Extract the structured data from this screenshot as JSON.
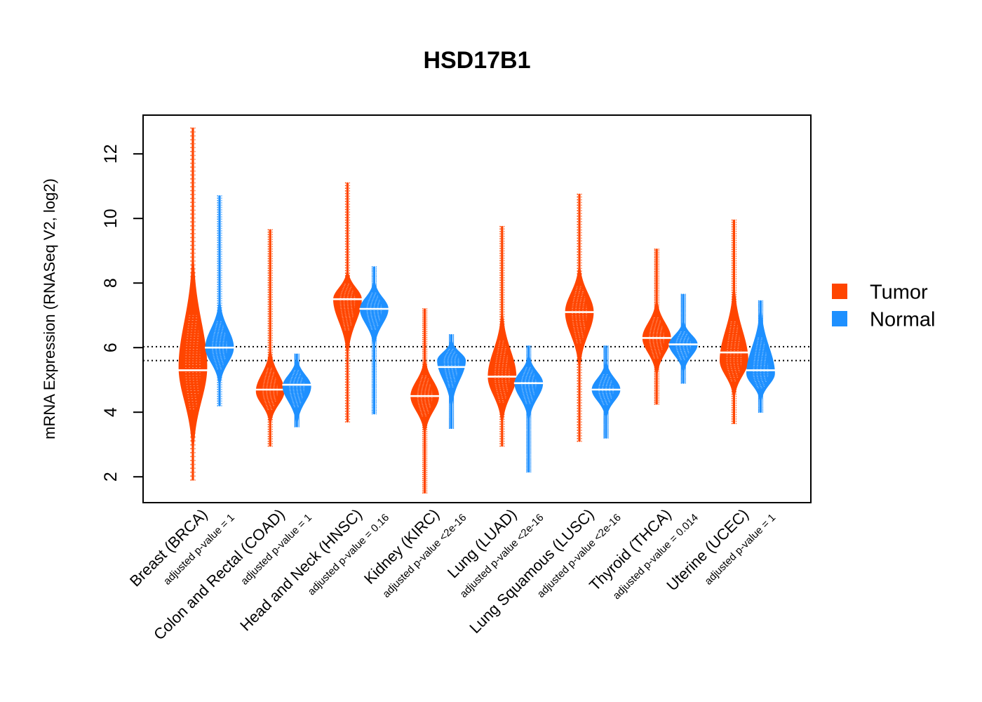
{
  "chart_data": {
    "type": "violin",
    "title": "HSD17B1",
    "ylabel": "mRNA Expression (RNASeq V2, log2)",
    "ylim": [
      1.2,
      13.2
    ],
    "yticks": [
      2,
      4,
      6,
      8,
      10,
      12
    ],
    "reference_lines": [
      6.03,
      5.6
    ],
    "legend": {
      "position": "right",
      "entries": [
        {
          "name": "Tumor",
          "color": "#ff4500"
        },
        {
          "name": "Normal",
          "color": "#1e90ff"
        }
      ]
    },
    "categories": [
      {
        "label": "Breast (BRCA)",
        "pvalue": "adjusted p-value = 1",
        "tumor": {
          "median": 5.3,
          "min": 1.9,
          "max": 12.8,
          "q1": 4.5,
          "q3": 6.6,
          "peak": 5.4
        },
        "normal": {
          "median": 6.0,
          "min": 4.2,
          "max": 10.7,
          "q1": 5.6,
          "q3": 6.5,
          "peak": 6.0
        }
      },
      {
        "label": "Colon and Rectal (COAD)",
        "pvalue": "adjusted p-value = 1",
        "tumor": {
          "median": 4.7,
          "min": 2.95,
          "max": 9.65,
          "q1": 4.3,
          "q3": 5.1,
          "peak": 4.65
        },
        "normal": {
          "median": 4.85,
          "min": 3.55,
          "max": 5.8,
          "q1": 4.4,
          "q3": 5.1,
          "peak": 4.8
        }
      },
      {
        "label": "Head and Neck (HNSC)",
        "pvalue": "adjusted p-value = 0.16",
        "tumor": {
          "median": 7.5,
          "min": 3.7,
          "max": 11.1,
          "q1": 6.9,
          "q3": 7.8,
          "peak": 7.5
        },
        "normal": {
          "median": 7.2,
          "min": 3.95,
          "max": 8.5,
          "q1": 6.8,
          "q3": 7.5,
          "peak": 7.2
        }
      },
      {
        "label": "Kidney (KIRC)",
        "pvalue": "adjusted p-value <2e-16",
        "tumor": {
          "median": 4.5,
          "min": 1.5,
          "max": 7.2,
          "q1": 4.1,
          "q3": 4.9,
          "peak": 4.5
        },
        "normal": {
          "median": 5.4,
          "min": 3.5,
          "max": 6.4,
          "q1": 5.1,
          "q3": 5.8,
          "peak": 5.6
        }
      },
      {
        "label": "Lung (LUAD)",
        "pvalue": "adjusted p-value <2e-16",
        "tumor": {
          "median": 5.1,
          "min": 2.95,
          "max": 9.75,
          "q1": 4.6,
          "q3": 5.8,
          "peak": 5.1
        },
        "normal": {
          "median": 4.9,
          "min": 2.15,
          "max": 6.05,
          "q1": 4.5,
          "q3": 5.2,
          "peak": 4.9
        }
      },
      {
        "label": "Lung Squamous (LUSC)",
        "pvalue": "adjusted p-value <2e-16",
        "tumor": {
          "median": 7.1,
          "min": 3.1,
          "max": 10.75,
          "q1": 6.5,
          "q3": 7.6,
          "peak": 7.1
        },
        "normal": {
          "median": 4.7,
          "min": 3.2,
          "max": 6.05,
          "q1": 4.4,
          "q3": 5.0,
          "peak": 4.7
        }
      },
      {
        "label": "Thyroid (THCA)",
        "pvalue": "adjusted p-value = 0.014",
        "tumor": {
          "median": 6.3,
          "min": 4.25,
          "max": 9.05,
          "q1": 5.9,
          "q3": 6.7,
          "peak": 6.3
        },
        "normal": {
          "median": 6.1,
          "min": 4.9,
          "max": 7.65,
          "q1": 5.8,
          "q3": 6.35,
          "peak": 6.1
        }
      },
      {
        "label": "Uterine (UCEC)",
        "pvalue": "adjusted p-value = 1",
        "tumor": {
          "median": 5.85,
          "min": 3.65,
          "max": 9.95,
          "q1": 5.2,
          "q3": 6.4,
          "peak": 5.6
        },
        "normal": {
          "median": 5.3,
          "min": 4.0,
          "max": 7.45,
          "q1": 4.9,
          "q3": 5.9,
          "peak": 5.2
        }
      }
    ]
  }
}
